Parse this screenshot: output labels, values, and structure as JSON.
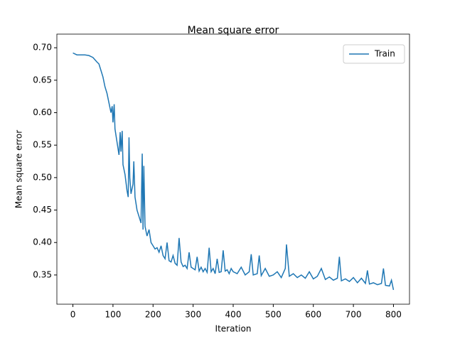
{
  "chart_data": {
    "type": "line",
    "title": "Mean square error",
    "x_label": "Iteration",
    "y_label": "Mean square error",
    "x": [
      0,
      10,
      20,
      30,
      40,
      50,
      60,
      65,
      70,
      75,
      80,
      85,
      90,
      95,
      98,
      100,
      103,
      105,
      110,
      115,
      118,
      120,
      123,
      125,
      130,
      135,
      138,
      140,
      142,
      145,
      150,
      152,
      155,
      160,
      165,
      170,
      173,
      175,
      177,
      180,
      185,
      190,
      195,
      200,
      205,
      210,
      215,
      220,
      225,
      230,
      235,
      240,
      245,
      250,
      255,
      260,
      265,
      270,
      275,
      280,
      285,
      290,
      295,
      300,
      305,
      310,
      315,
      320,
      325,
      330,
      335,
      340,
      345,
      350,
      355,
      360,
      365,
      370,
      375,
      380,
      385,
      390,
      395,
      400,
      410,
      420,
      430,
      440,
      445,
      450,
      460,
      465,
      470,
      480,
      490,
      500,
      510,
      520,
      530,
      533,
      540,
      550,
      560,
      570,
      580,
      590,
      600,
      610,
      620,
      630,
      640,
      650,
      660,
      665,
      670,
      680,
      690,
      700,
      710,
      720,
      730,
      735,
      740,
      750,
      760,
      770,
      775,
      780,
      790,
      795,
      800
    ],
    "series": [
      {
        "name": "Train",
        "color": "#1f77b4",
        "values": [
          0.692,
          0.689,
          0.689,
          0.689,
          0.688,
          0.685,
          0.678,
          0.675,
          0.665,
          0.655,
          0.64,
          0.63,
          0.615,
          0.6,
          0.61,
          0.585,
          0.613,
          0.575,
          0.555,
          0.535,
          0.57,
          0.54,
          0.572,
          0.52,
          0.505,
          0.48,
          0.47,
          0.562,
          0.5,
          0.475,
          0.49,
          0.525,
          0.47,
          0.45,
          0.44,
          0.43,
          0.537,
          0.42,
          0.518,
          0.425,
          0.41,
          0.42,
          0.4,
          0.395,
          0.39,
          0.392,
          0.385,
          0.395,
          0.38,
          0.375,
          0.4,
          0.372,
          0.37,
          0.38,
          0.368,
          0.365,
          0.407,
          0.37,
          0.363,
          0.365,
          0.36,
          0.385,
          0.362,
          0.36,
          0.358,
          0.378,
          0.356,
          0.362,
          0.355,
          0.36,
          0.354,
          0.392,
          0.355,
          0.36,
          0.352,
          0.375,
          0.354,
          0.355,
          0.388,
          0.356,
          0.358,
          0.352,
          0.36,
          0.355,
          0.352,
          0.362,
          0.35,
          0.355,
          0.382,
          0.35,
          0.352,
          0.38,
          0.349,
          0.36,
          0.348,
          0.35,
          0.355,
          0.346,
          0.36,
          0.397,
          0.348,
          0.352,
          0.346,
          0.35,
          0.345,
          0.355,
          0.344,
          0.348,
          0.36,
          0.343,
          0.347,
          0.342,
          0.345,
          0.378,
          0.341,
          0.344,
          0.34,
          0.346,
          0.338,
          0.345,
          0.337,
          0.357,
          0.336,
          0.338,
          0.335,
          0.337,
          0.36,
          0.334,
          0.333,
          0.342,
          0.327
        ]
      }
    ],
    "xlim": [
      -40,
      840
    ],
    "ylim": [
      0.305,
      0.721
    ],
    "xticks": [
      0,
      100,
      200,
      300,
      400,
      500,
      600,
      700,
      800
    ],
    "yticks": [
      0.35,
      {
        "value": 0.4,
        "label": "0.40"
      },
      0.45,
      {
        "value": 0.5,
        "label": "0.50"
      },
      0.55,
      {
        "value": 0.6,
        "label": "0.60"
      },
      0.65,
      {
        "value": 0.7,
        "label": "0.70"
      }
    ],
    "legend": "upper right"
  }
}
